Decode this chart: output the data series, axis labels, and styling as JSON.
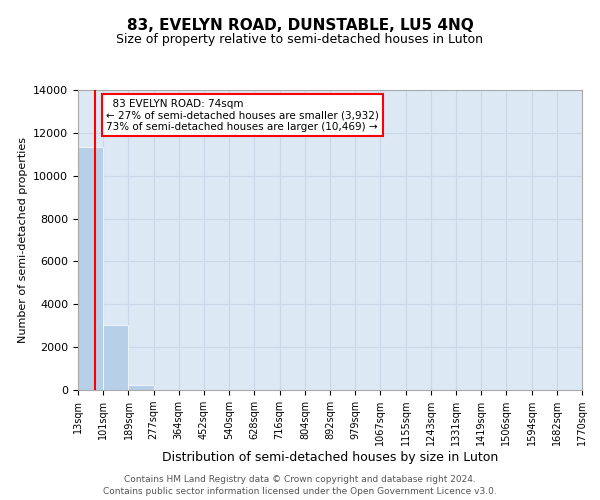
{
  "title": "83, EVELYN ROAD, DUNSTABLE, LU5 4NQ",
  "subtitle": "Size of property relative to semi-detached houses in Luton",
  "xlabel": "Distribution of semi-detached houses by size in Luton",
  "ylabel": "Number of semi-detached properties",
  "property_size": 74,
  "property_label": "83 EVELYN ROAD: 74sqm",
  "pct_smaller": 27,
  "pct_larger": 73,
  "count_smaller": 3932,
  "count_larger": 10469,
  "annotation_line": "← 27% of semi-detached houses are smaller (3,932)",
  "annotation_line2": "73% of semi-detached houses are larger (10,469) →",
  "bin_edges": [
    13,
    101,
    189,
    277,
    364,
    452,
    540,
    628,
    716,
    804,
    892,
    979,
    1067,
    1155,
    1243,
    1331,
    1419,
    1506,
    1594,
    1682,
    1770
  ],
  "bin_labels": [
    "13sqm",
    "101sqm",
    "189sqm",
    "277sqm",
    "364sqm",
    "452sqm",
    "540sqm",
    "628sqm",
    "716sqm",
    "804sqm",
    "892sqm",
    "979sqm",
    "1067sqm",
    "1155sqm",
    "1243sqm",
    "1331sqm",
    "1419sqm",
    "1506sqm",
    "1594sqm",
    "1682sqm",
    "1770sqm"
  ],
  "bar_values": [
    11350,
    3050,
    230,
    20,
    5,
    3,
    2,
    1,
    1,
    1,
    1,
    1,
    0,
    0,
    0,
    0,
    0,
    0,
    0,
    0
  ],
  "bar_color": "#b8cfe8",
  "ylim": [
    0,
    14000
  ],
  "yticks": [
    0,
    2000,
    4000,
    6000,
    8000,
    10000,
    12000,
    14000
  ],
  "grid_color": "#c8d8e8",
  "background_color": "#dce8f4",
  "footer_line1": "Contains HM Land Registry data © Crown copyright and database right 2024.",
  "footer_line2": "Contains public sector information licensed under the Open Government Licence v3.0."
}
